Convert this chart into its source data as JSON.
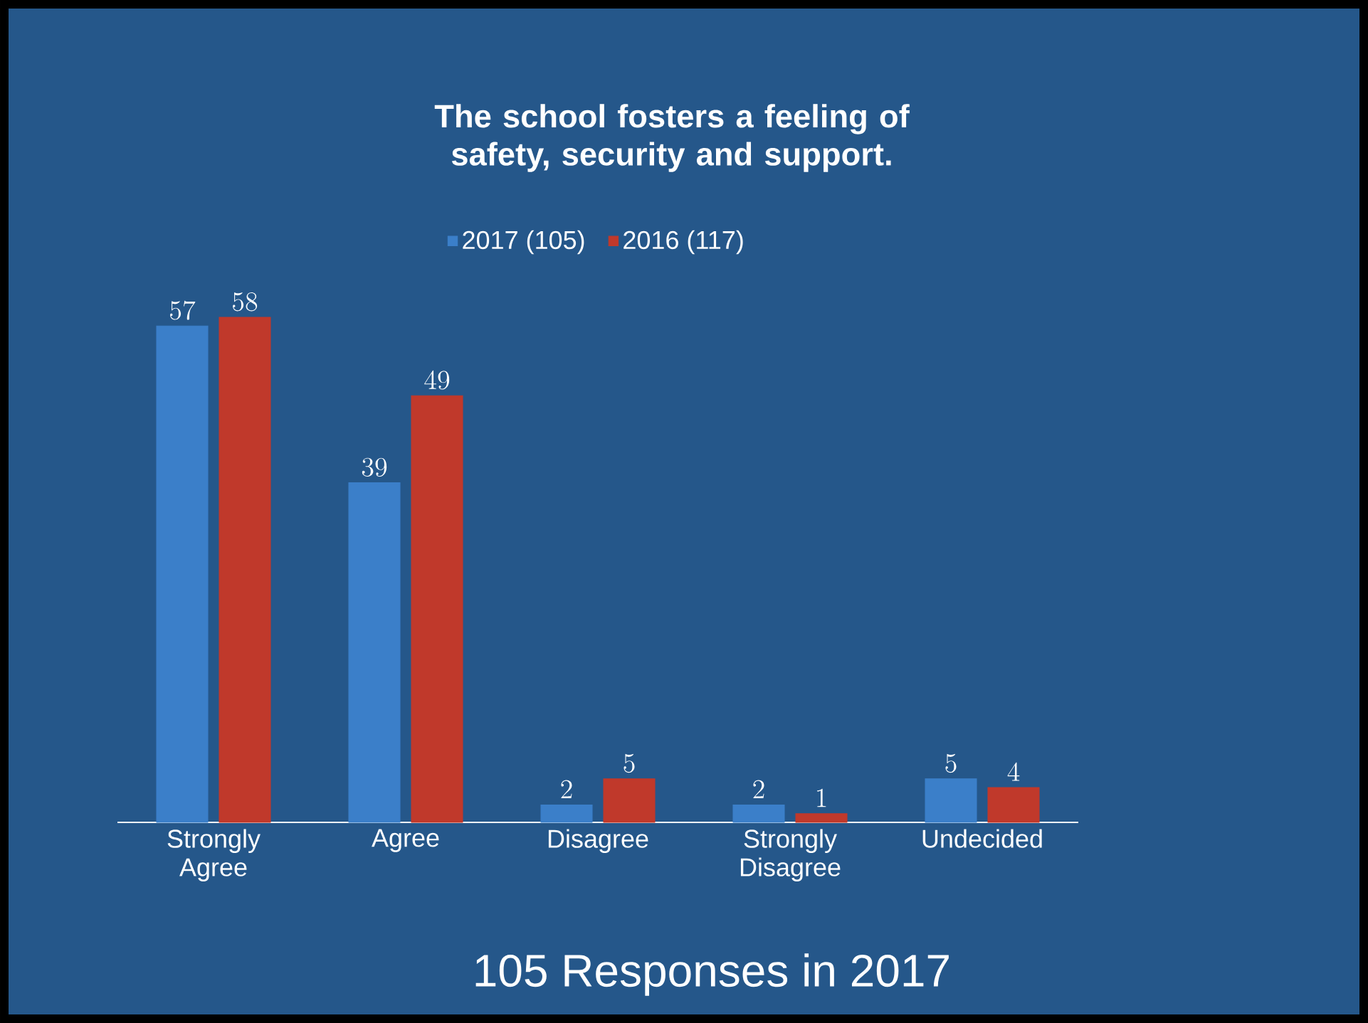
{
  "chart_data": {
    "type": "bar",
    "title": "The school fosters a feeling of safety, security and support.",
    "categories": [
      "Strongly Agree",
      "Agree",
      "Disagree",
      "Strongly Disagree",
      "Undecided"
    ],
    "series": [
      {
        "name": "2017 (105)",
        "color": "#3b7fc9",
        "values": [
          57,
          39,
          2,
          2,
          5
        ]
      },
      {
        "name": "2016 (117)",
        "color": "#c0392b",
        "values": [
          58,
          49,
          5,
          1,
          4
        ]
      }
    ],
    "data_labels": true,
    "legend": "top",
    "annotations": [
      "105 Responses in 2017"
    ]
  }
}
